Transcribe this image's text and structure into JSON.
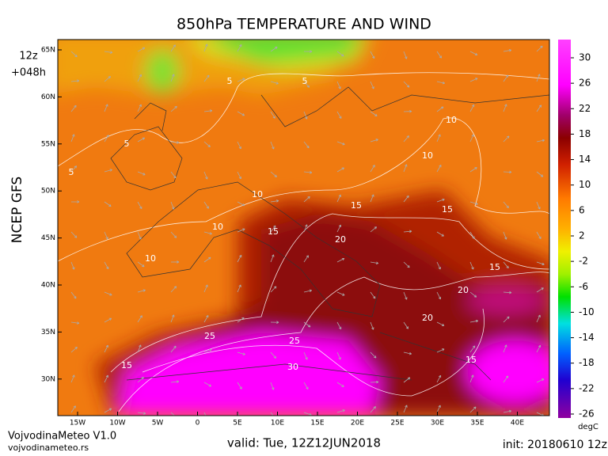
{
  "title": "850hPa TEMPERATURE AND WIND",
  "run_hour": "12z",
  "forecast_hour": "+048h",
  "model": "NCEP GFS",
  "lat_labels": [
    "65N",
    "60N",
    "55N",
    "50N",
    "45N",
    "40N",
    "35N",
    "30N"
  ],
  "lon_labels": [
    "15W",
    "10W",
    "5W",
    "0",
    "5E",
    "10E",
    "15E",
    "20E",
    "25E",
    "30E",
    "35E",
    "40E"
  ],
  "colorbar": {
    "ticks": [
      30,
      26,
      22,
      18,
      14,
      10,
      6,
      2,
      -2,
      -6,
      -10,
      -14,
      -18,
      -22,
      -26
    ],
    "unit": "degC"
  },
  "contour_labels": [
    5,
    5,
    5,
    5,
    10,
    10,
    10,
    10,
    10,
    15,
    15,
    15,
    15,
    20,
    20,
    20,
    25,
    25,
    30,
    15,
    15
  ],
  "footer": {
    "brand": "VojvodinaMeteo V1.0",
    "site": "vojvodinameteo.rs",
    "valid": "valid: Tue, 12Z12JUN2018",
    "init": "init: 20180610 12z"
  }
}
